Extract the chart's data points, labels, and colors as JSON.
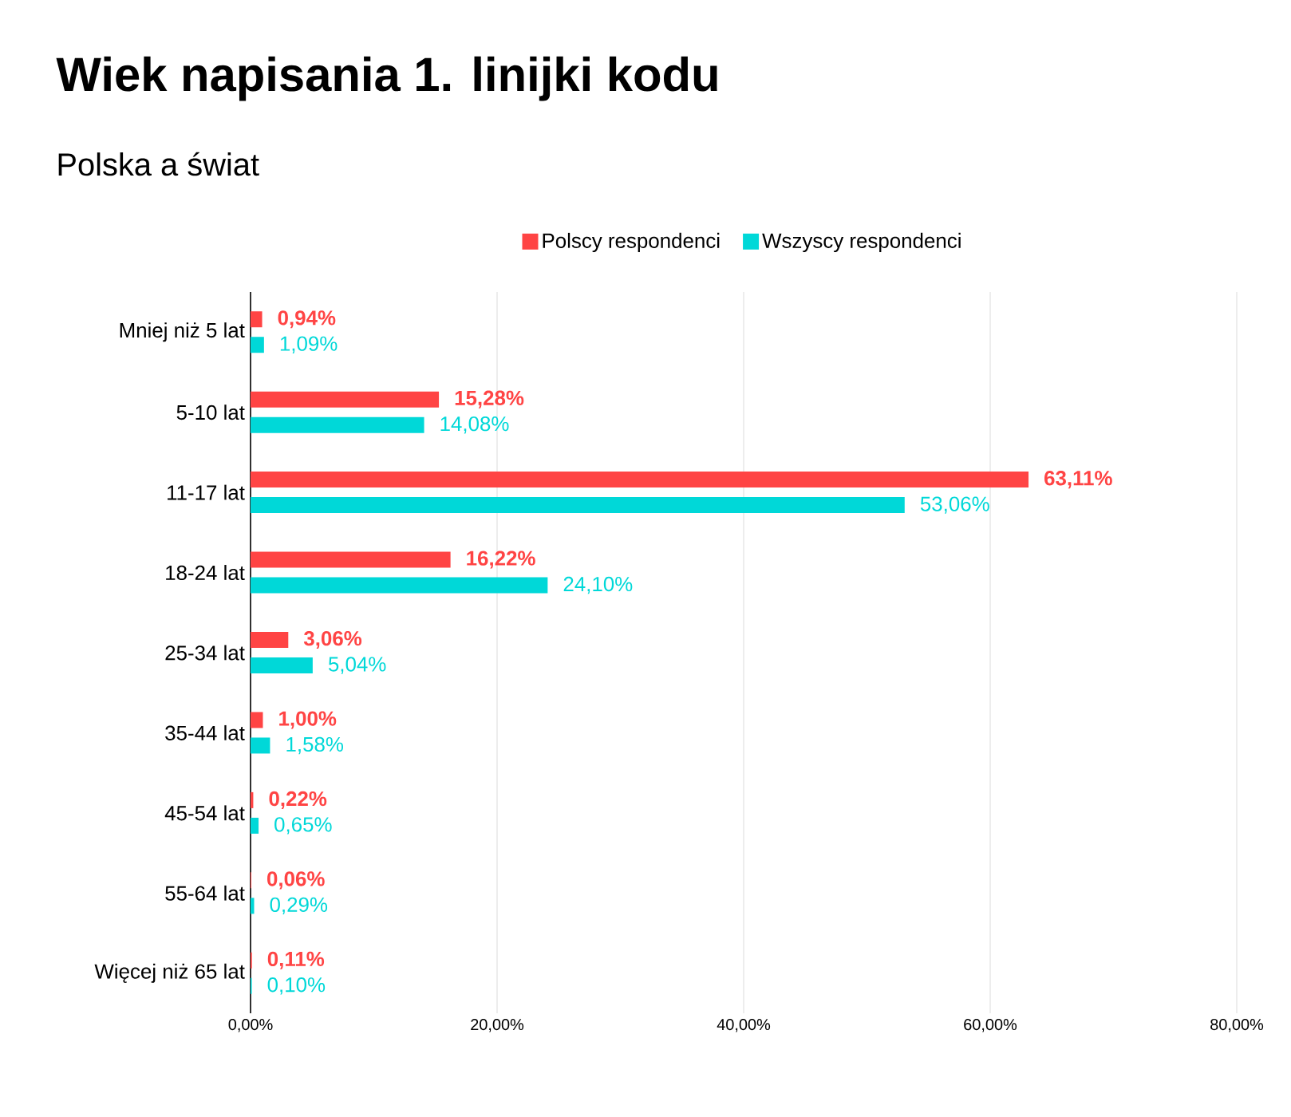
{
  "chart_data": {
    "type": "bar",
    "orientation": "horizontal",
    "title": "Wiek napisania 1. linijki kodu",
    "subtitle": "Polska a świat",
    "categories": [
      "Mniej niż 5 lat",
      "5-10 lat",
      "11-17 lat",
      "18-24 lat",
      "25-34 lat",
      "35-44 lat",
      "45-54 lat",
      "55-64 lat",
      "Więcej niż 65 lat"
    ],
    "series": [
      {
        "name": "Polscy respondenci",
        "color": "#ff4444",
        "values": [
          0.94,
          15.28,
          63.11,
          16.22,
          3.06,
          1.0,
          0.22,
          0.06,
          0.11
        ],
        "value_labels": [
          "0,94%",
          "15,28%",
          "63,11%",
          "16,22%",
          "3,06%",
          "1,00%",
          "0,22%",
          "0,06%",
          "0,11%"
        ]
      },
      {
        "name": "Wszyscy respondenci",
        "color": "#00d8d8",
        "values": [
          1.09,
          14.08,
          53.06,
          24.1,
          5.04,
          1.58,
          0.65,
          0.29,
          0.1
        ],
        "value_labels": [
          "1,09%",
          "14,08%",
          "53,06%",
          "24,10%",
          "5,04%",
          "1,58%",
          "0,65%",
          "0,29%",
          "0,10%"
        ]
      }
    ],
    "xlim": [
      0,
      80
    ],
    "xticks": [
      {
        "value": 0,
        "label": "0,00%"
      },
      {
        "value": 20,
        "label": "20,00%"
      },
      {
        "value": 40,
        "label": "40,00%"
      },
      {
        "value": 60,
        "label": "60,00%"
      },
      {
        "value": 80,
        "label": "80,00%"
      }
    ],
    "grid": "x",
    "legend": "top"
  }
}
